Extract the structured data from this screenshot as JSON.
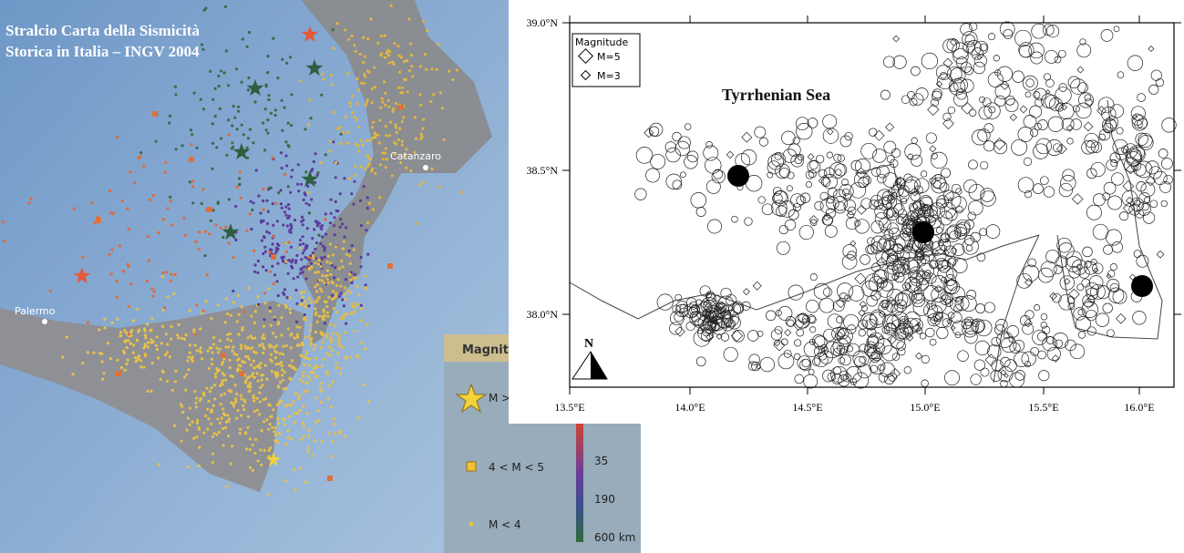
{
  "left_map": {
    "title_lines": [
      "Stralcio Carta della Sismicità",
      "Storica in Italia – INGV 2004"
    ],
    "places": [
      "Catanzaro",
      "Palermo"
    ],
    "legend": {
      "title": "Magnitudo",
      "items": [
        "M >",
        "4 < M < 5",
        "M < 4"
      ],
      "depth_labels": [
        "35",
        "190",
        "600 km"
      ]
    }
  },
  "right_map": {
    "sea_label": "Tyrrhenian Sea",
    "legend": {
      "title": "Magnitude",
      "items": [
        "M=5",
        "M=3"
      ]
    },
    "north": "N",
    "lat_labels": [
      "39.0°N",
      "38.5°N",
      "38.0°N"
    ],
    "lon_labels": [
      "13.5°E",
      "14.0°E",
      "14.5°E",
      "15.0°E",
      "15.5°E",
      "16.0°E"
    ]
  }
}
